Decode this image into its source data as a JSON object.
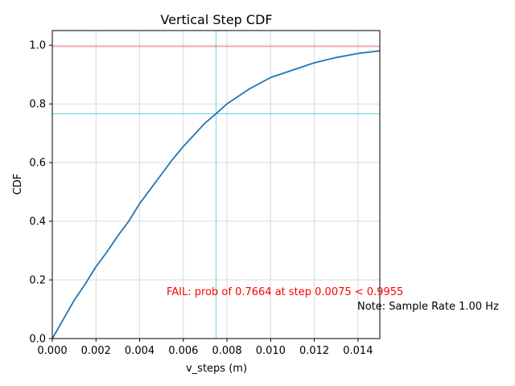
{
  "chart_data": {
    "type": "line",
    "title": "Vertical Step CDF",
    "xlabel": "v_steps (m)",
    "ylabel": "CDF",
    "xlim": [
      0,
      0.015
    ],
    "ylim": [
      0,
      1.05
    ],
    "xticks": [
      "0.000",
      "0.002",
      "0.004",
      "0.006",
      "0.008",
      "0.010",
      "0.012",
      "0.014"
    ],
    "xtick_values": [
      0,
      0.002,
      0.004,
      0.006,
      0.008,
      0.01,
      0.012,
      0.014
    ],
    "yticks": [
      "0.0",
      "0.2",
      "0.4",
      "0.6",
      "0.8",
      "1.0"
    ],
    "ytick_values": [
      0,
      0.2,
      0.4,
      0.6,
      0.8,
      1.0
    ],
    "grid": true,
    "series": [
      {
        "color": "#1f77b4",
        "x": [
          0,
          0.0005,
          0.001,
          0.0015,
          0.002,
          0.0025,
          0.003,
          0.0035,
          0.004,
          0.0045,
          0.005,
          0.0055,
          0.006,
          0.0065,
          0.007,
          0.0075,
          0.008,
          0.009,
          0.01,
          0.011,
          0.012,
          0.013,
          0.014,
          0.015
        ],
        "y": [
          0.0,
          0.065,
          0.13,
          0.185,
          0.245,
          0.295,
          0.35,
          0.4,
          0.46,
          0.51,
          0.56,
          0.61,
          0.655,
          0.695,
          0.735,
          0.7664,
          0.8,
          0.85,
          0.89,
          0.915,
          0.94,
          0.958,
          0.972,
          0.981
        ]
      }
    ],
    "reference_lines": {
      "threshold_y": 0.9955,
      "threshold_color": "#ff0000",
      "step_x": 0.0075,
      "prob_y": 0.7664,
      "crosshair_color": "#17becf"
    },
    "annotations": {
      "fail_text": "FAIL: prob of 0.7664 at step 0.0075 < 0.9955",
      "note_text": "Note: Sample Rate 1.00 Hz"
    }
  }
}
